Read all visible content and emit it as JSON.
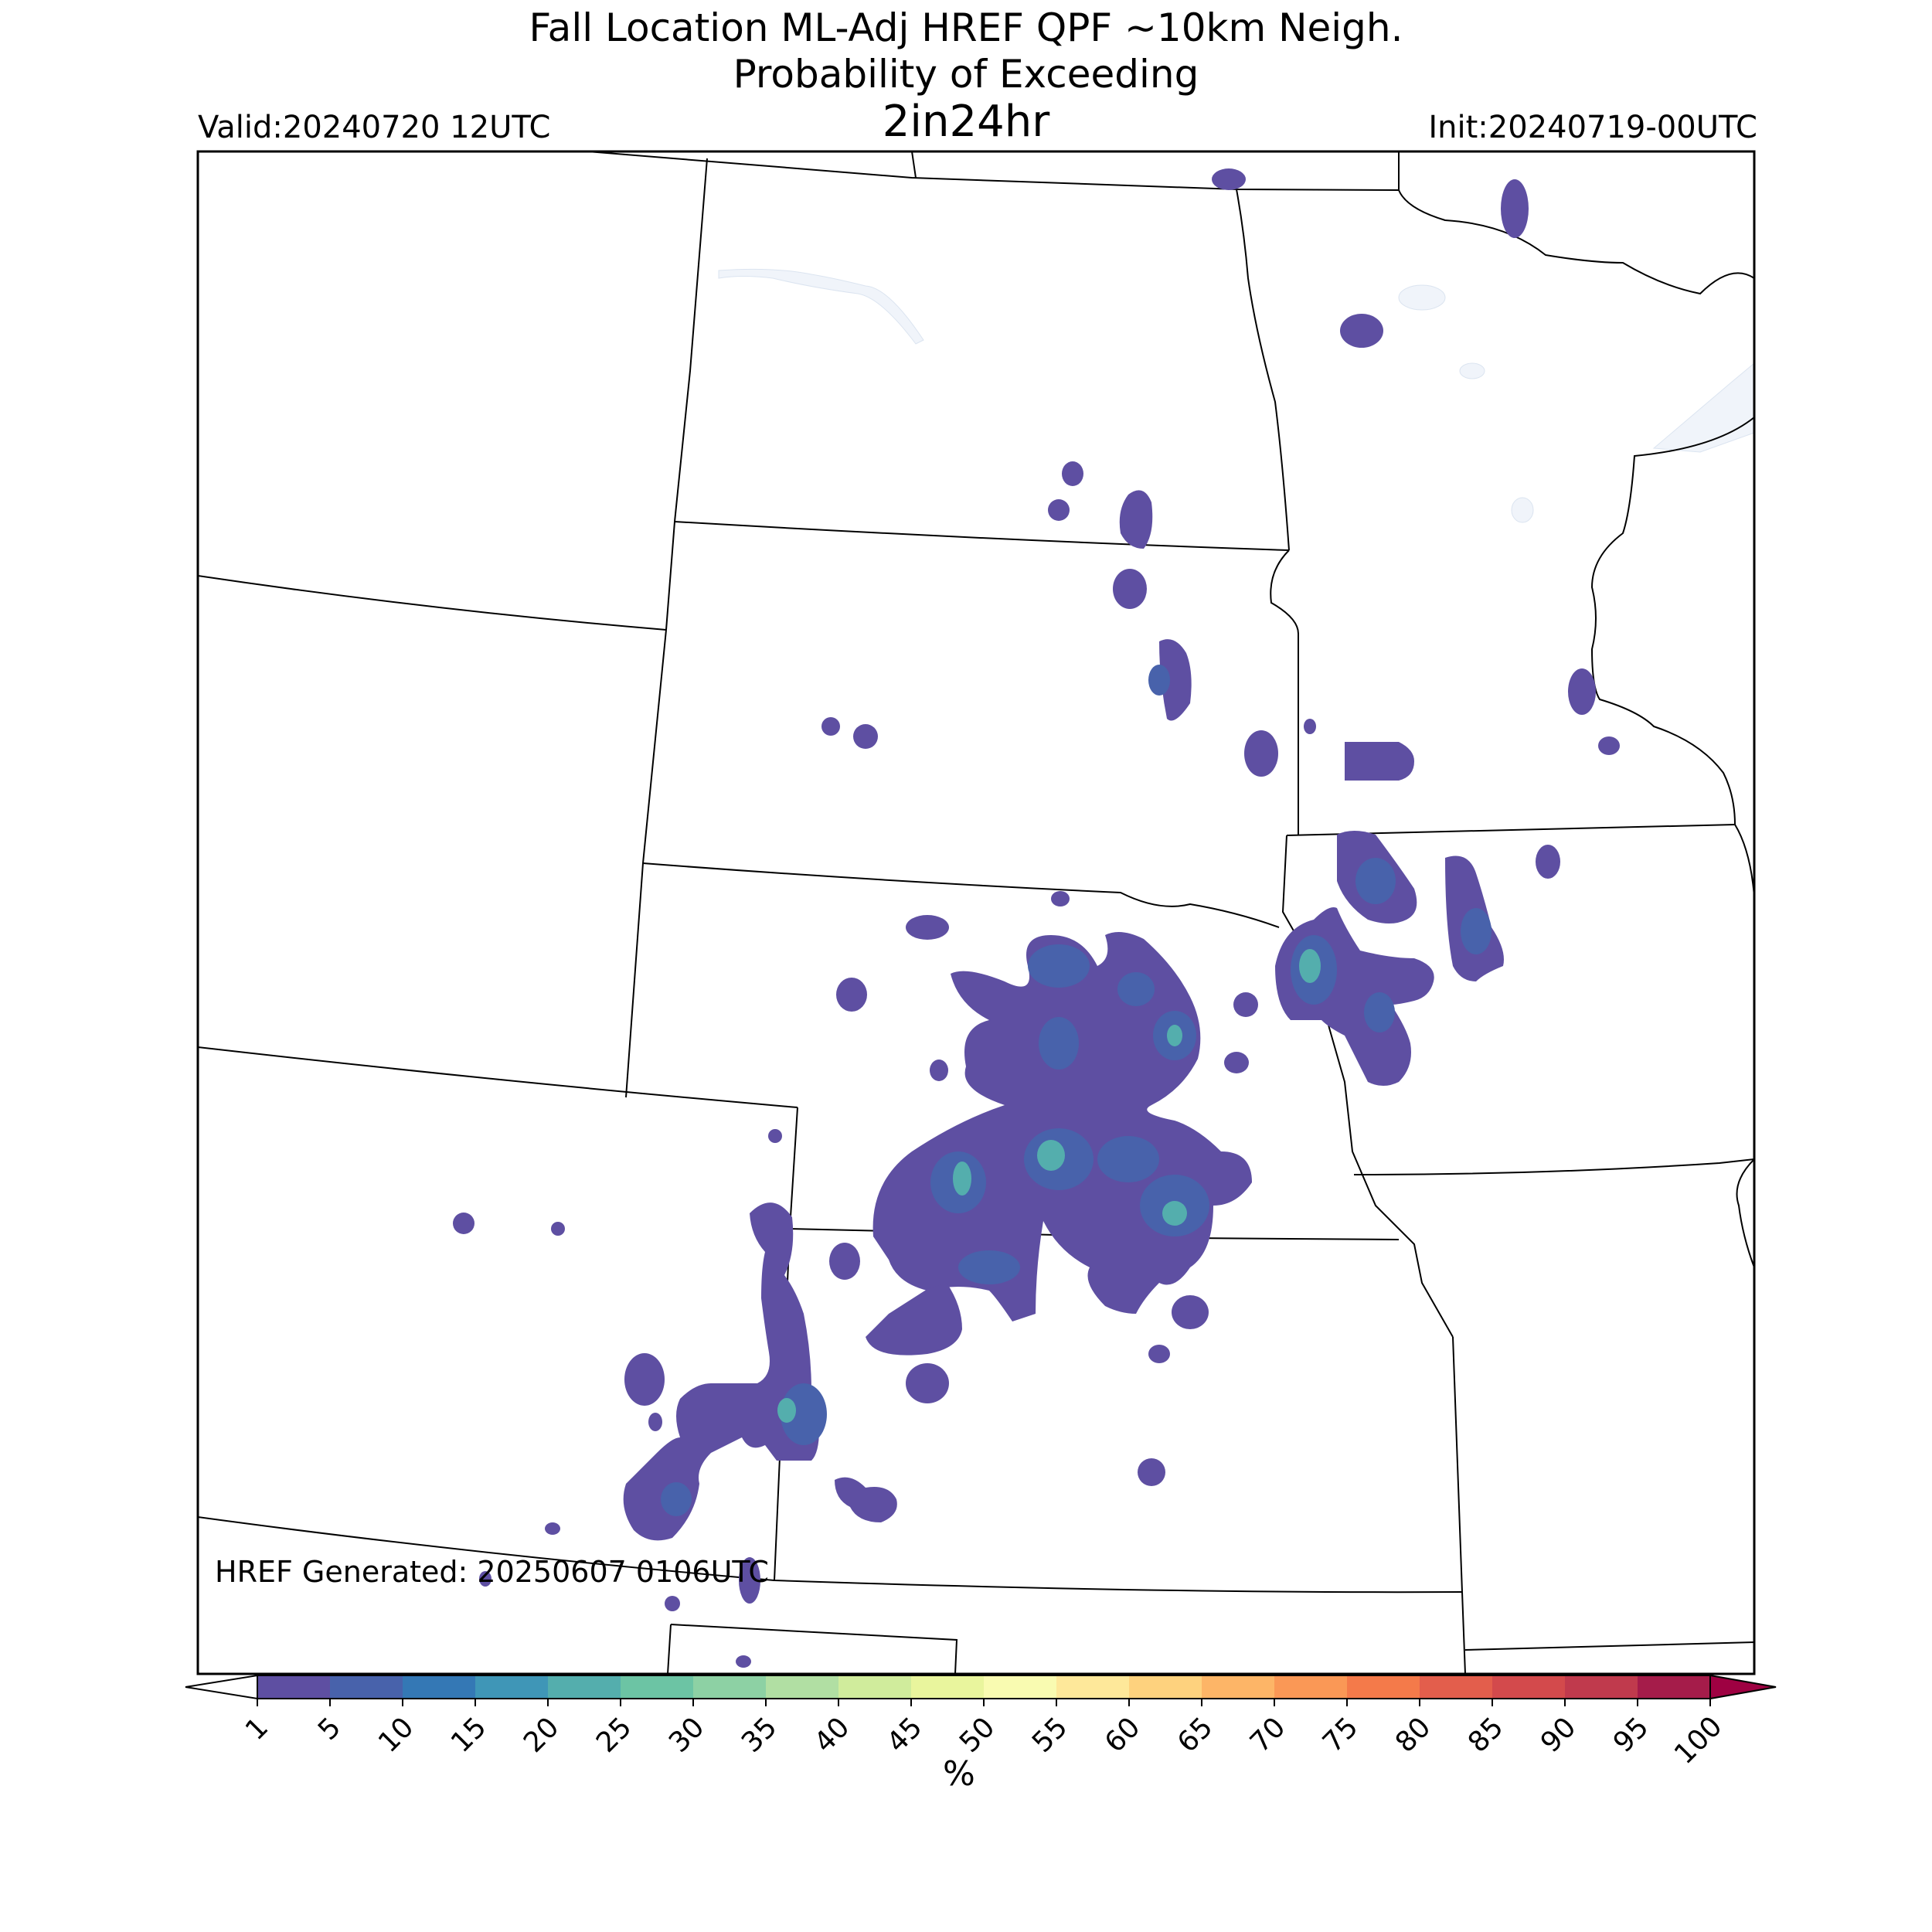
{
  "title": {
    "line1": "Fall Location ML-Adj HREF QPF ~10km Neigh.",
    "line2": "Probability of Exceeding",
    "line3": "2in24hr"
  },
  "valid": "Valid:20240720 12UTC",
  "init": "Init:20240719-00UTC",
  "generated": "HREF Generated: 20250607 0106UTC",
  "colorbar": {
    "unit": "%",
    "ticks": [
      "1",
      "5",
      "10",
      "15",
      "20",
      "25",
      "30",
      "35",
      "40",
      "45",
      "50",
      "55",
      "60",
      "65",
      "70",
      "75",
      "80",
      "85",
      "90",
      "95",
      "100"
    ],
    "colors": [
      "#5e4fa2",
      "#4862ab",
      "#3478b5",
      "#3f96b7",
      "#54aead",
      "#6cc4a4",
      "#8dd1a4",
      "#b1dfa3",
      "#d0ec9c",
      "#e9f59d",
      "#f9fbb1",
      "#fee89a",
      "#fed27e",
      "#fdb567",
      "#fa9856",
      "#f47a4a",
      "#e35e4c",
      "#d34a4c",
      "#c03a4d",
      "#a51c4a"
    ],
    "under_color": "#ffffff",
    "over_color": "#9e0142"
  },
  "map": {
    "region": "Central US",
    "water_color": "#f0f4fa",
    "prob_low_color": "#5e4fa2",
    "prob_mid_color": "#4862ab",
    "prob_high_color": "#54aead"
  }
}
